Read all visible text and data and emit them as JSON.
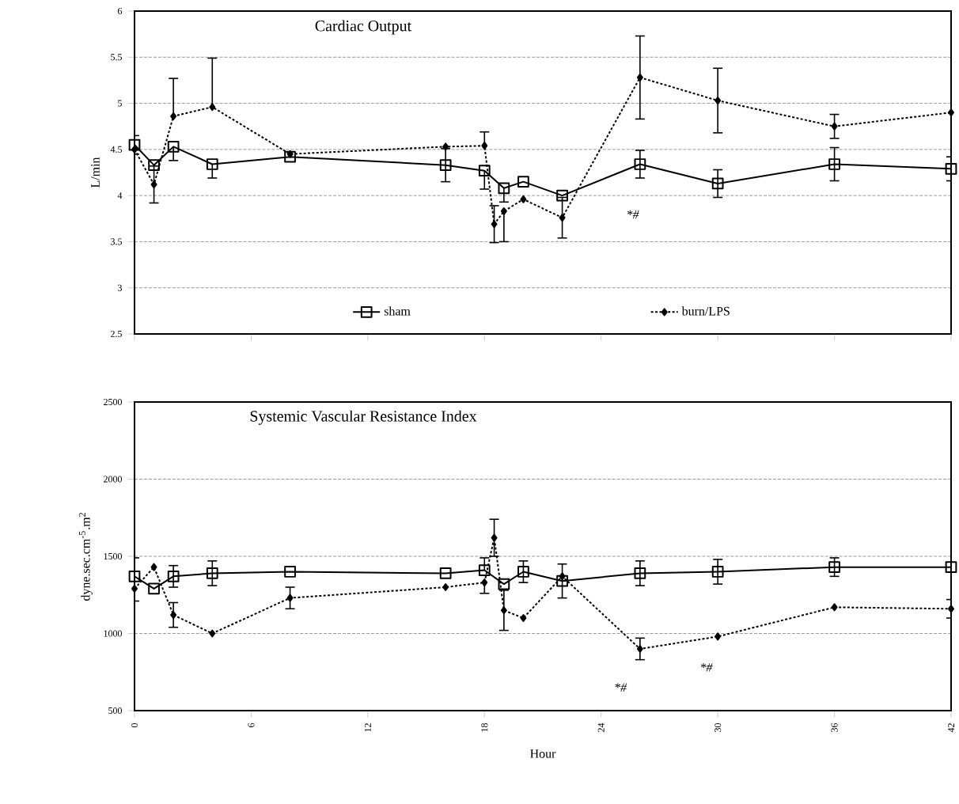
{
  "chart_data": [
    {
      "type": "line",
      "title": "Cardiac Output",
      "ylabel": "L/min",
      "xlim": [
        0,
        42
      ],
      "xticks": [
        {
          "value": 0,
          "label": null
        },
        {
          "value": 6,
          "label": null
        },
        {
          "value": 12,
          "label": null
        },
        {
          "value": 18,
          "label": null
        },
        {
          "value": 24,
          "label": null
        },
        {
          "value": 30,
          "label": null
        },
        {
          "value": 36,
          "label": null
        },
        {
          "value": 42,
          "label": null
        }
      ],
      "ylim": [
        2.5,
        6
      ],
      "yticks": [
        2.5,
        3,
        3.5,
        4,
        4.5,
        5,
        5.5,
        6
      ],
      "tick_labels": "y",
      "grid": "y",
      "legend": "bottom",
      "series": [
        {
          "name": "sham",
          "color": "#000000",
          "marker": "square",
          "line_style": "solid",
          "x": [
            0,
            1,
            2,
            4,
            8,
            16,
            18,
            19,
            20,
            22,
            26,
            30,
            36,
            42
          ],
          "values": [
            4.55,
            4.33,
            4.53,
            4.34,
            4.42,
            4.33,
            4.27,
            4.08,
            4.15,
            4.0,
            4.34,
            4.13,
            4.34,
            4.29
          ],
          "errors": [
            0.1,
            null,
            [
              4.38,
              4.53
            ],
            [
              4.19,
              4.34
            ],
            null,
            0.18,
            [
              4.07,
              4.27
            ],
            [
              3.93,
              4.08
            ],
            null,
            null,
            0.15,
            0.15,
            0.18,
            0.13
          ]
        },
        {
          "name": "burn/LPS",
          "color": "#000000",
          "marker": "diamond",
          "line_style": "dotted",
          "x": [
            0,
            1,
            2,
            4,
            8,
            16,
            18,
            18.5,
            19,
            20,
            22,
            26,
            30,
            36,
            42
          ],
          "values": [
            4.5,
            4.12,
            4.86,
            4.96,
            4.45,
            4.53,
            4.54,
            3.69,
            3.83,
            3.96,
            3.76,
            5.28,
            5.03,
            4.75,
            4.9
          ],
          "errors": [
            null,
            0.2,
            [
              4.86,
              5.27
            ],
            [
              4.96,
              5.49
            ],
            null,
            null,
            [
              4.54,
              4.69
            ],
            0.2,
            [
              3.5,
              3.83
            ],
            null,
            0.22,
            0.45,
            0.35,
            0.13,
            null
          ]
        }
      ],
      "annotations": [
        "*#"
      ]
    },
    {
      "type": "line",
      "title": "Systemic Vascular Resistance Index",
      "xlabel": "Hour",
      "ylabel": "dyne.sec.cm$^{-5}$.m$^{2}$",
      "xlim": [
        0,
        42
      ],
      "xticks": [
        0,
        6,
        12,
        18,
        24,
        30,
        36,
        42
      ],
      "ylim": [
        500,
        2500
      ],
      "yticks": [
        500,
        1000,
        1500,
        2000,
        2500
      ],
      "grid": "y",
      "series": [
        {
          "color": "#000000",
          "marker": "square",
          "line_style": "solid",
          "x": [
            0,
            1,
            2,
            4,
            8,
            16,
            18,
            19,
            20,
            22,
            26,
            30,
            36,
            42
          ],
          "values": [
            1370,
            1290,
            1370,
            1390,
            1400,
            1390,
            1410,
            1320,
            1400,
            1340,
            1390,
            1400,
            1430,
            1430
          ],
          "errors": [
            [
              1370,
              1490
            ],
            null,
            70,
            80,
            null,
            null,
            [
              1410,
              1490
            ],
            null,
            70,
            110,
            80,
            80,
            60,
            null
          ]
        },
        {
          "color": "#000000",
          "marker": "diamond",
          "line_style": "dotted",
          "x": [
            0,
            1,
            2,
            4,
            8,
            16,
            18,
            18.5,
            19,
            20,
            22,
            26,
            30,
            36,
            42
          ],
          "values": [
            1290,
            1430,
            1120,
            1000,
            1230,
            1300,
            1330,
            1620,
            1150,
            1100,
            1370,
            900,
            980,
            1170,
            1160
          ],
          "errors": [
            [
              1210,
              1290
            ],
            null,
            80,
            null,
            70,
            null,
            [
              1260,
              1330
            ],
            120,
            130,
            null,
            null,
            70,
            null,
            null,
            60
          ]
        }
      ],
      "annotations": [
        "*#",
        "*#"
      ]
    }
  ]
}
